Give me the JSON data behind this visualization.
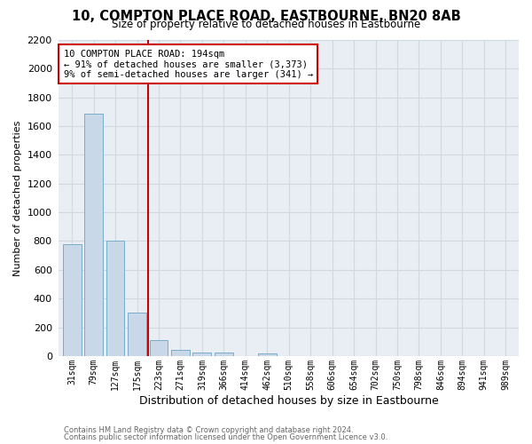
{
  "title": "10, COMPTON PLACE ROAD, EASTBOURNE, BN20 8AB",
  "subtitle": "Size of property relative to detached houses in Eastbourne",
  "xlabel": "Distribution of detached houses by size in Eastbourne",
  "ylabel": "Number of detached properties",
  "bar_labels": [
    "31sqm",
    "79sqm",
    "127sqm",
    "175sqm",
    "223sqm",
    "271sqm",
    "319sqm",
    "366sqm",
    "414sqm",
    "462sqm",
    "510sqm",
    "558sqm",
    "606sqm",
    "654sqm",
    "702sqm",
    "750sqm",
    "798sqm",
    "846sqm",
    "894sqm",
    "941sqm",
    "989sqm"
  ],
  "bar_values": [
    780,
    1690,
    800,
    300,
    110,
    45,
    25,
    25,
    0,
    20,
    0,
    0,
    0,
    0,
    0,
    0,
    0,
    0,
    0,
    0,
    0
  ],
  "bar_color": "#c8d8e8",
  "bar_edge_color": "#7aaccc",
  "vline_x": 3.5,
  "vline_color": "#cc0000",
  "annotation_line1": "10 COMPTON PLACE ROAD: 194sqm",
  "annotation_line2": "← 91% of detached houses are smaller (3,373)",
  "annotation_line3": "9% of semi-detached houses are larger (341) →",
  "annotation_box_color": "#ffffff",
  "annotation_box_edge": "#cc0000",
  "ylim": [
    0,
    2200
  ],
  "yticks": [
    0,
    200,
    400,
    600,
    800,
    1000,
    1200,
    1400,
    1600,
    1800,
    2000,
    2200
  ],
  "grid_color": "#d0d8e0",
  "background_color": "#ffffff",
  "plot_bg_color": "#e8eef4",
  "footer1": "Contains HM Land Registry data © Crown copyright and database right 2024.",
  "footer2": "Contains public sector information licensed under the Open Government Licence v3.0."
}
